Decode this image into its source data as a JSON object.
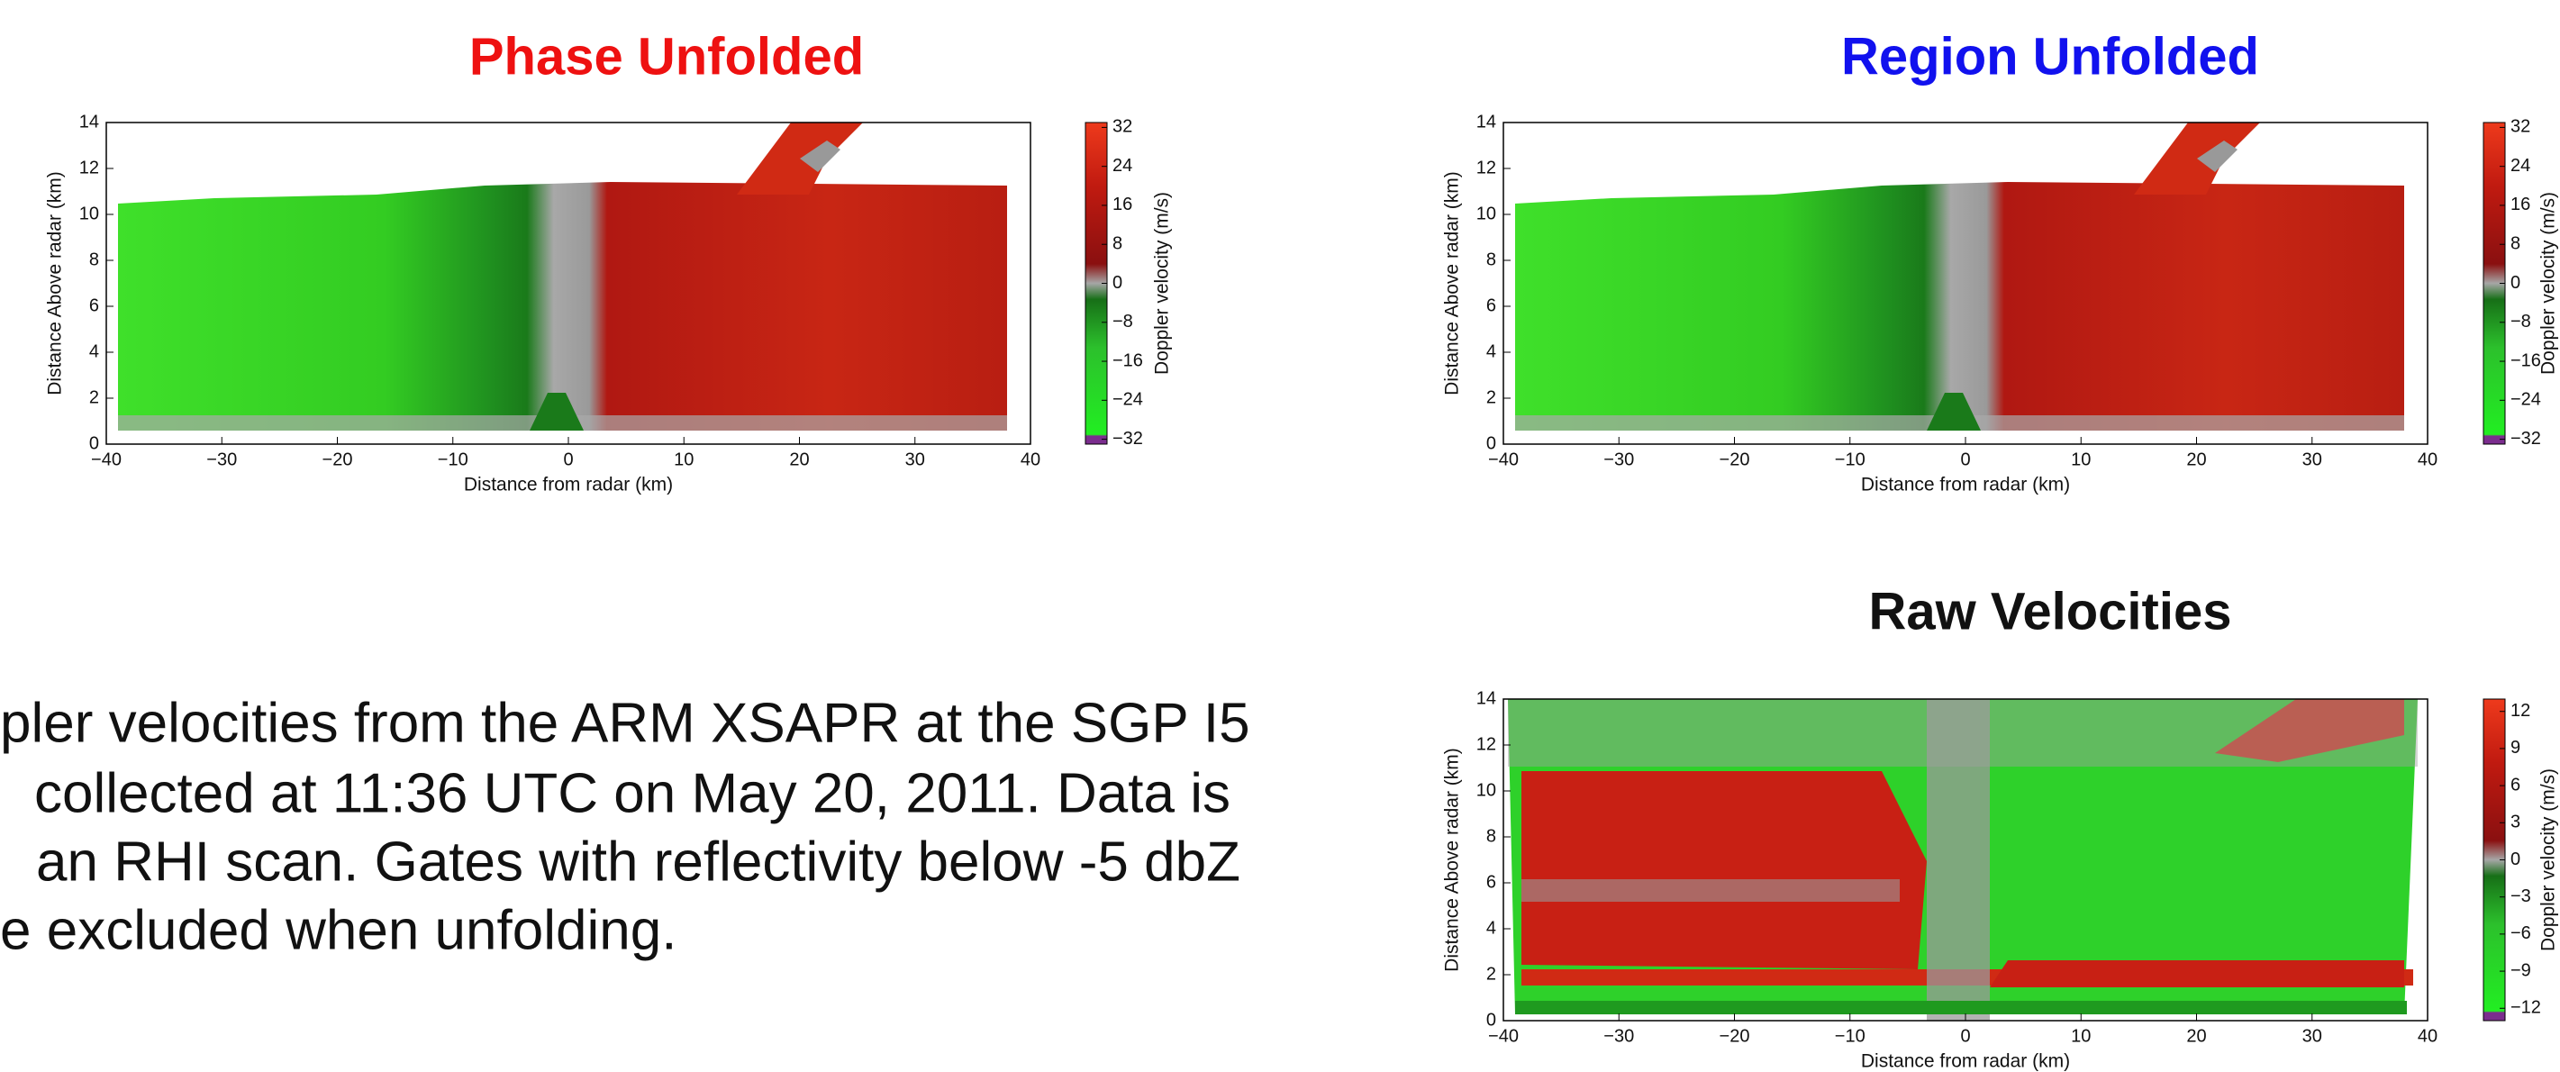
{
  "chart_data": [
    {
      "type": "heatmap",
      "title": "Phase Unfolded",
      "title_color": "#ee1111",
      "xlabel": "Distance from radar (km)",
      "ylabel": "Distance Above radar  (km)",
      "xlim": [
        -40,
        40
      ],
      "xticks": [
        {
          "value": -40,
          "label": "−40"
        },
        {
          "value": -30,
          "label": "−30"
        },
        {
          "value": -20,
          "label": "−20"
        },
        {
          "value": -10,
          "label": "−10"
        },
        0,
        10,
        20,
        30,
        40
      ],
      "ylim": [
        0,
        14
      ],
      "yticks": [
        0,
        2,
        4,
        6,
        8,
        10,
        12,
        14
      ],
      "colorbar": {
        "label": "Doppler velocity (m/s)",
        "clim": [
          -33,
          33
        ],
        "ticks": [
          32,
          24,
          16,
          8,
          0,
          {
            "value": -8,
            "label": "−8"
          },
          {
            "value": -16,
            "label": "−16"
          },
          {
            "value": -24,
            "label": "−24"
          },
          {
            "value": -32,
            "label": "−32"
          }
        ]
      }
    },
    {
      "type": "heatmap",
      "title": "Region Unfolded",
      "title_color": "#1111ee",
      "xlabel": "Distance from radar (km)",
      "ylabel": "Distance Above radar  (km)",
      "xlim": [
        -40,
        40
      ],
      "xticks": [
        {
          "value": -40,
          "label": "−40"
        },
        {
          "value": -30,
          "label": "−30"
        },
        {
          "value": -20,
          "label": "−20"
        },
        {
          "value": -10,
          "label": "−10"
        },
        0,
        10,
        20,
        30,
        40
      ],
      "ylim": [
        0,
        14
      ],
      "yticks": [
        0,
        2,
        4,
        6,
        8,
        10,
        12,
        14
      ],
      "colorbar": {
        "label": "Doppler velocity (m/s)",
        "clim": [
          -33,
          33
        ],
        "ticks": [
          32,
          24,
          16,
          8,
          0,
          {
            "value": -8,
            "label": "−8"
          },
          {
            "value": -16,
            "label": "−16"
          },
          {
            "value": -24,
            "label": "−24"
          },
          {
            "value": -32,
            "label": "−32"
          }
        ]
      }
    },
    {
      "type": "heatmap",
      "title": "Raw Velocities",
      "title_color": "#111111",
      "xlabel": "Distance from radar (km)",
      "ylabel": "Distance Above radar  (km)",
      "xlim": [
        -40,
        40
      ],
      "xticks": [
        {
          "value": -40,
          "label": "−40"
        },
        {
          "value": -30,
          "label": "−30"
        },
        {
          "value": -20,
          "label": "−20"
        },
        {
          "value": -10,
          "label": "−10"
        },
        0,
        10,
        20,
        30,
        40
      ],
      "ylim": [
        0,
        14
      ],
      "yticks": [
        0,
        2,
        4,
        6,
        8,
        10,
        12,
        14
      ],
      "colorbar": {
        "label": "Doppler velocity (m/s)",
        "clim": [
          -13,
          13
        ],
        "ticks": [
          12,
          9,
          6,
          3,
          0,
          {
            "value": -3,
            "label": "−3"
          },
          {
            "value": -6,
            "label": "−6"
          },
          {
            "value": -9,
            "label": "−9"
          },
          {
            "value": -12,
            "label": "−12"
          }
        ]
      }
    }
  ],
  "text": {
    "lines": [
      "pler velocities from the ARM XSAPR at the SGP I5",
      "collected at 11:36 UTC on May 20, 2011.  Data is",
      "an RHI scan. Gates with reflectivity below -5 dbZ",
      "e excluded when unfolding."
    ]
  }
}
